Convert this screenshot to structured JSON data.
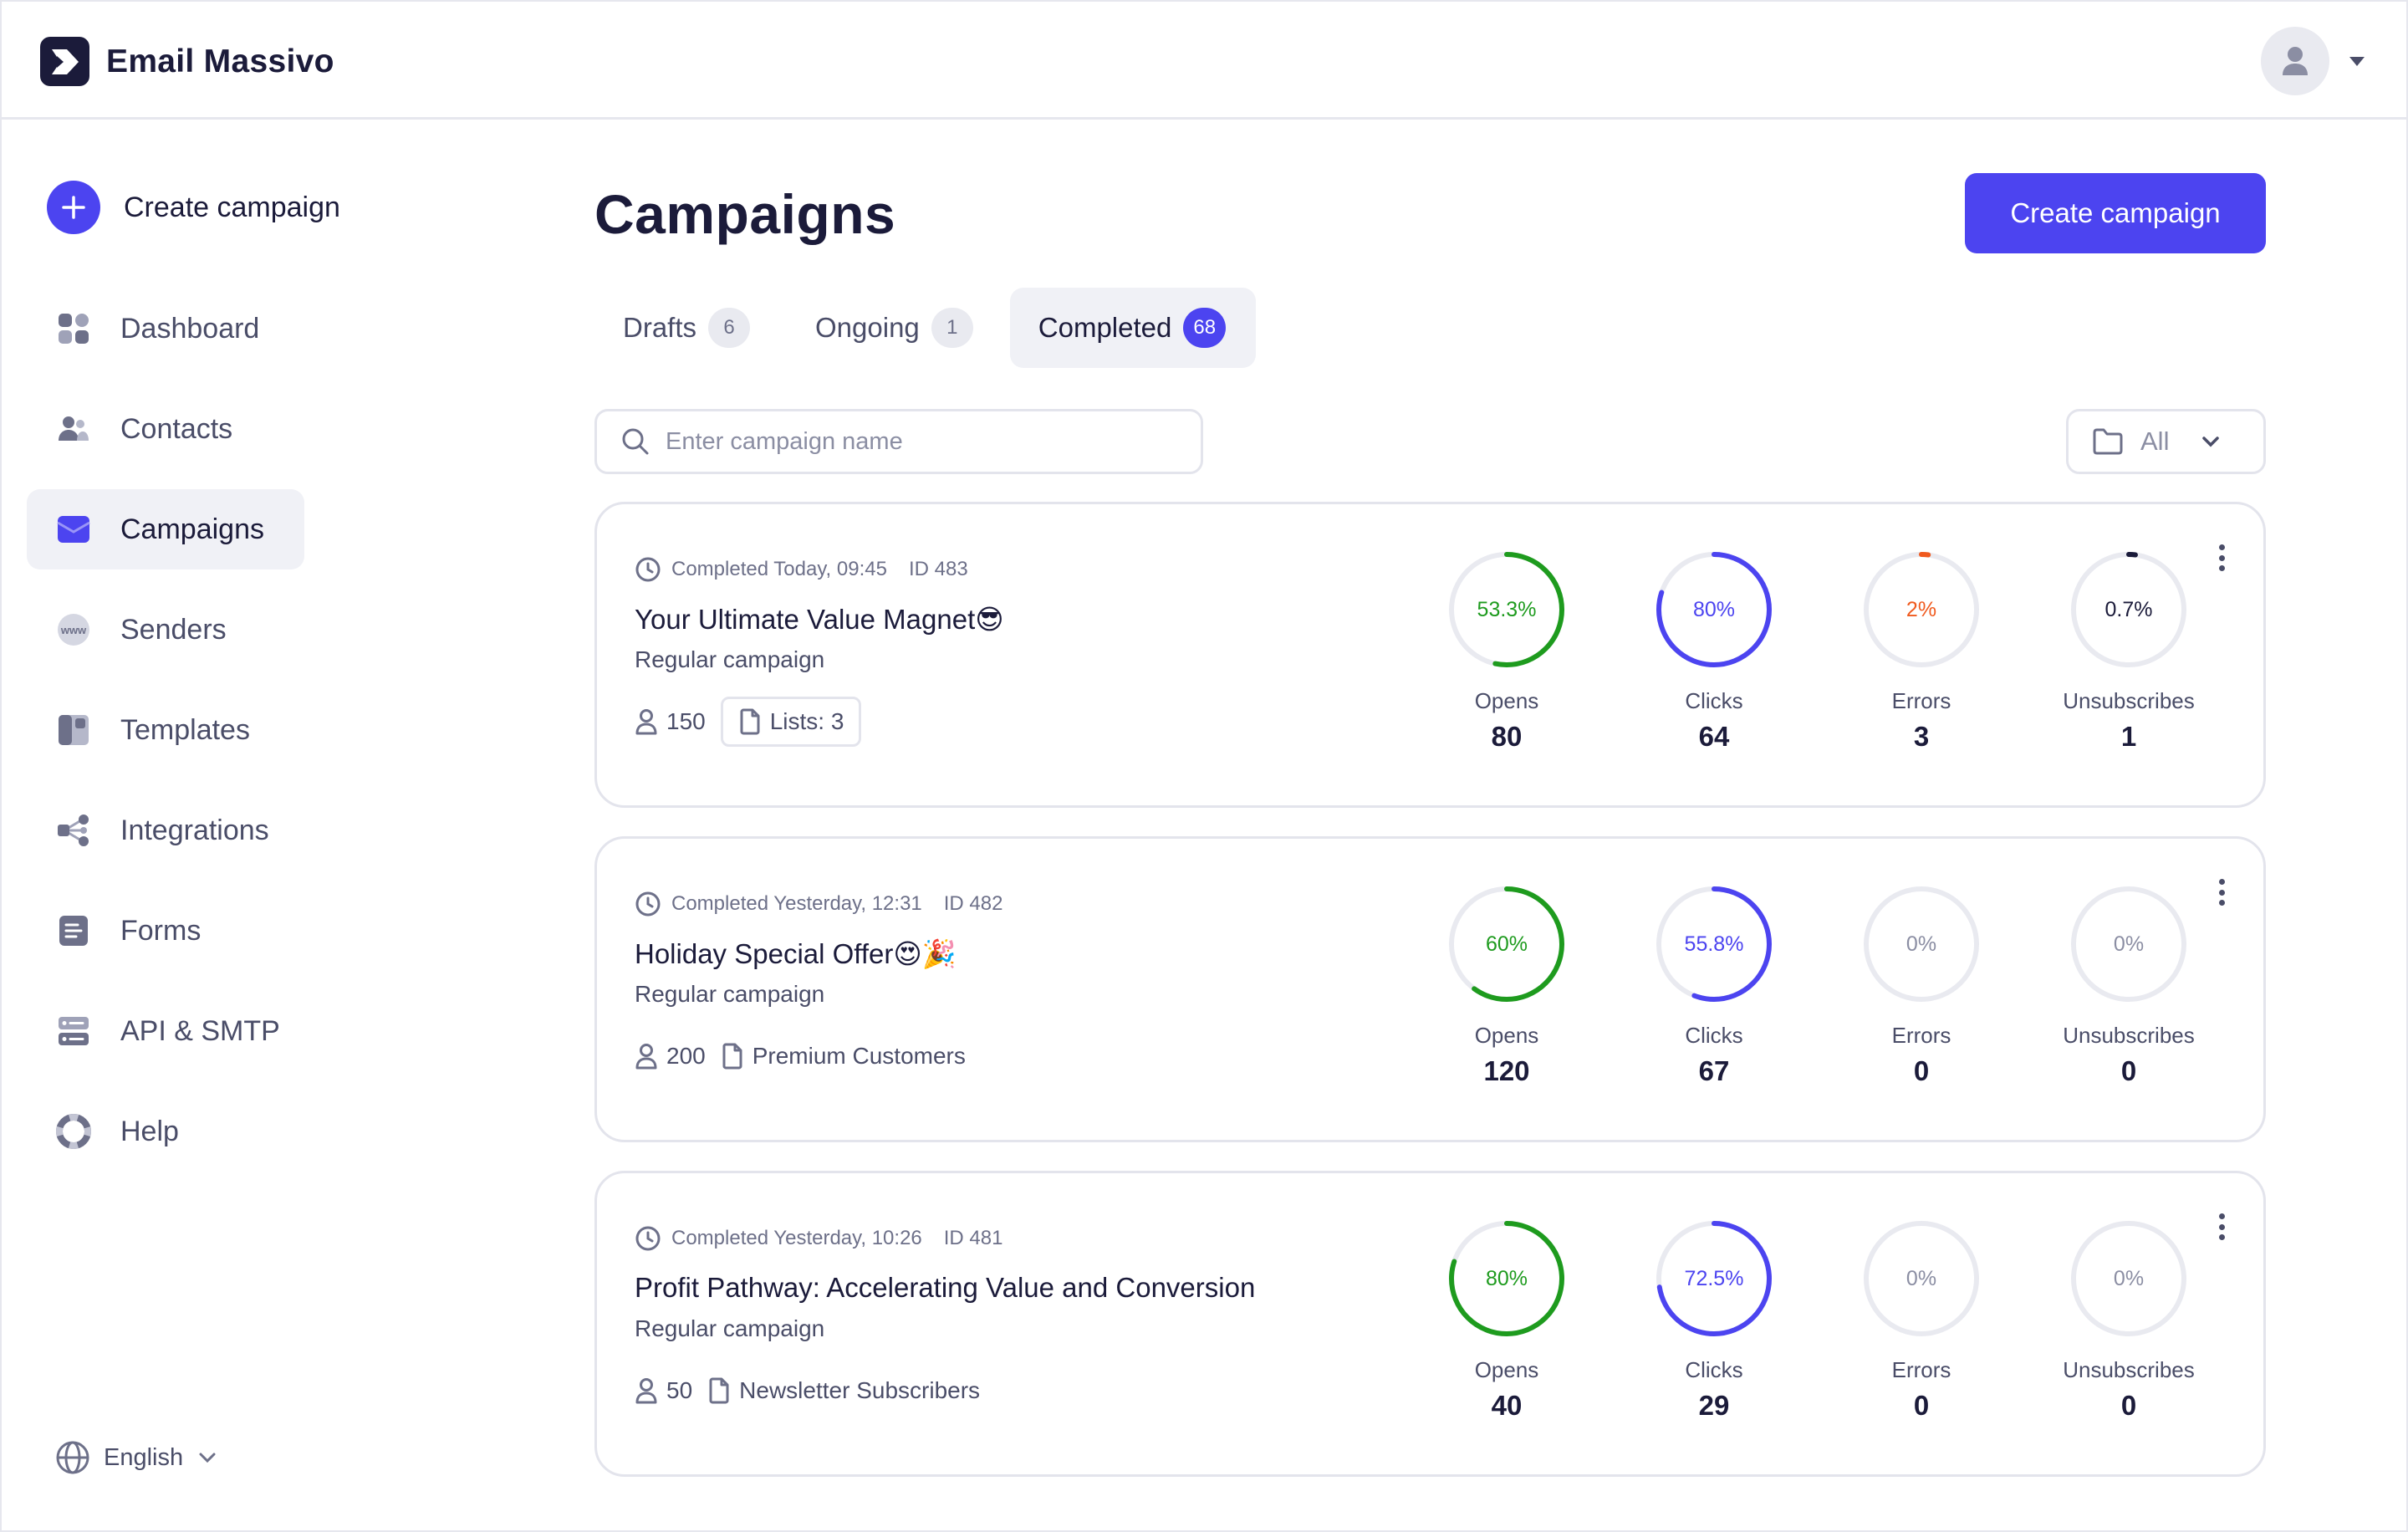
{
  "app": {
    "name": "Email Massivo"
  },
  "header": {
    "avatar_icon": "user-avatar-icon",
    "menu_caret_icon": "caret-down-icon"
  },
  "sidebar": {
    "create_label": "Create campaign",
    "items": [
      {
        "label": "Dashboard",
        "icon": "dashboard-icon",
        "active": false
      },
      {
        "label": "Contacts",
        "icon": "contacts-icon",
        "active": false
      },
      {
        "label": "Campaigns",
        "icon": "campaigns-icon",
        "active": true
      },
      {
        "label": "Senders",
        "icon": "senders-icon",
        "active": false
      },
      {
        "label": "Templates",
        "icon": "templates-icon",
        "active": false
      },
      {
        "label": "Integrations",
        "icon": "integrations-icon",
        "active": false
      },
      {
        "label": "Forms",
        "icon": "forms-icon",
        "active": false
      },
      {
        "label": "API & SMTP",
        "icon": "api-smtp-icon",
        "active": false
      },
      {
        "label": "Help",
        "icon": "help-icon",
        "active": false
      }
    ],
    "language": "English"
  },
  "main": {
    "title": "Campaigns",
    "create_button": "Create campaign",
    "tabs": [
      {
        "label": "Drafts",
        "count": "6",
        "active": false
      },
      {
        "label": "Ongoing",
        "count": "1",
        "active": false
      },
      {
        "label": "Completed",
        "count": "68",
        "active": true
      }
    ],
    "search": {
      "placeholder": "Enter campaign name",
      "value": ""
    },
    "folder_filter": {
      "selected": "All"
    },
    "stat_labels": [
      "Opens",
      "Clicks",
      "Errors",
      "Unsubscribes"
    ],
    "colors": {
      "opens": "#1e9b1e",
      "clicks": "#4c44f0",
      "errors": "#f05a1e",
      "unsubscribes": "#1b1b3a",
      "track": "#e9eaf0",
      "accent": "#4c44f0"
    },
    "campaigns": [
      {
        "status": "Completed Today, 09:45",
        "id": "ID 483",
        "title": "Your Ultimate Value Magnet😎",
        "type": "Regular campaign",
        "recipients": "150",
        "list": "Lists: 3",
        "list_boxed": true,
        "stats": [
          {
            "percent": "53.3%",
            "fraction": 0.533,
            "value": "80"
          },
          {
            "percent": "80%",
            "fraction": 0.8,
            "value": "64"
          },
          {
            "percent": "2%",
            "fraction": 0.02,
            "value": "3"
          },
          {
            "percent": "0.7%",
            "fraction": 0.007,
            "value": "1"
          }
        ]
      },
      {
        "status": "Completed Yesterday, 12:31",
        "id": "ID 482",
        "title": "Holiday Special Offer😍🎉",
        "type": "Regular campaign",
        "recipients": "200",
        "list": "Premium Customers",
        "list_boxed": false,
        "stats": [
          {
            "percent": "60%",
            "fraction": 0.6,
            "value": "120"
          },
          {
            "percent": "55.8%",
            "fraction": 0.558,
            "value": "67"
          },
          {
            "percent": "0%",
            "fraction": 0,
            "value": "0"
          },
          {
            "percent": "0%",
            "fraction": 0,
            "value": "0"
          }
        ]
      },
      {
        "status": "Completed Yesterday, 10:26",
        "id": "ID 481",
        "title": "Profit Pathway: Accelerating Value and Conversion",
        "type": "Regular campaign",
        "recipients": "50",
        "list": "Newsletter Subscribers",
        "list_boxed": false,
        "stats": [
          {
            "percent": "80%",
            "fraction": 0.8,
            "value": "40"
          },
          {
            "percent": "72.5%",
            "fraction": 0.725,
            "value": "29"
          },
          {
            "percent": "0%",
            "fraction": 0,
            "value": "0"
          },
          {
            "percent": "0%",
            "fraction": 0,
            "value": "0"
          }
        ]
      }
    ]
  }
}
